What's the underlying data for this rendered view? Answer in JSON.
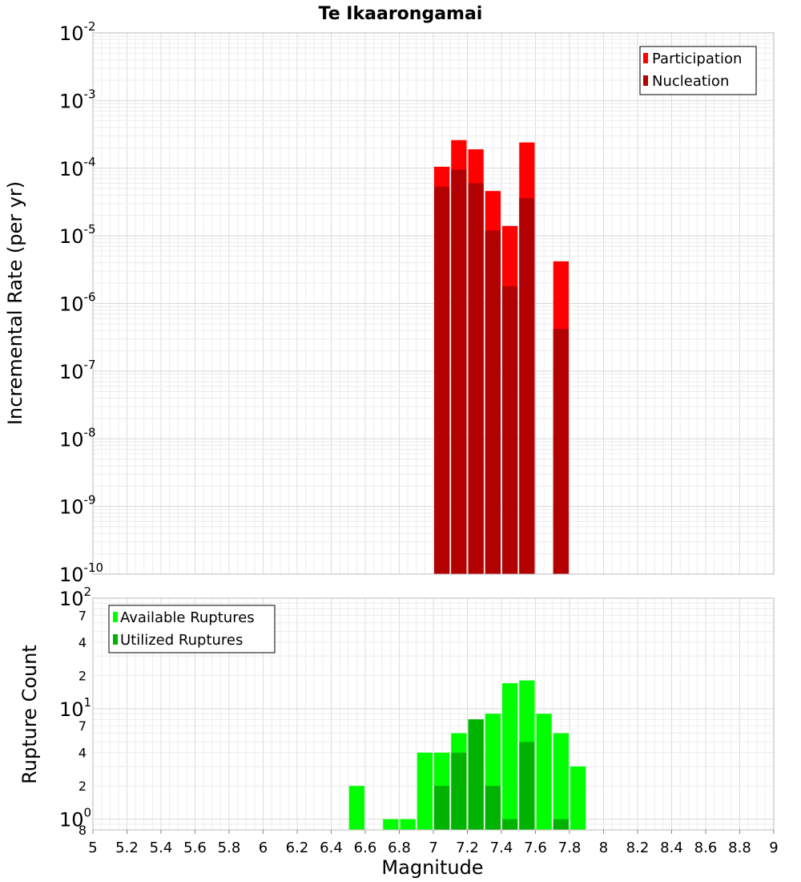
{
  "chart_data": {
    "title": "Te Ikaarongamai",
    "xlabel": "Magnitude",
    "xlim": [
      5,
      9
    ],
    "x_ticks": [
      "5",
      "5.2",
      "5.4",
      "5.6",
      "5.8",
      "6",
      "6.2",
      "6.4",
      "6.6",
      "6.8",
      "7",
      "7.2",
      "7.4",
      "7.6",
      "7.8",
      "8",
      "8.2",
      "8.4",
      "8.6",
      "8.8",
      "9"
    ],
    "grid": true,
    "panels": [
      {
        "type": "bar",
        "ylabel": "Incremental Rate (per yr)",
        "yscale": "log",
        "ylim": [
          1e-10,
          0.01
        ],
        "y_ticks": [
          {
            "base": "10",
            "exp": "-10"
          },
          {
            "base": "10",
            "exp": "-9"
          },
          {
            "base": "10",
            "exp": "-8"
          },
          {
            "base": "10",
            "exp": "-7"
          },
          {
            "base": "10",
            "exp": "-6"
          },
          {
            "base": "10",
            "exp": "-5"
          },
          {
            "base": "10",
            "exp": "-4"
          },
          {
            "base": "10",
            "exp": "-3"
          },
          {
            "base": "10",
            "exp": "-2"
          }
        ],
        "legend_position": "top-right",
        "x": [
          7.05,
          7.15,
          7.25,
          7.35,
          7.45,
          7.55,
          7.75
        ],
        "series": [
          {
            "name": "Participation",
            "color": "#ff0000",
            "values": [
              0.000105,
              0.00026,
              0.00019,
              4.6e-05,
              1.4e-05,
              0.00024,
              4.2e-06
            ]
          },
          {
            "name": "Nucleation",
            "color": "#b30000",
            "values": [
              5.3e-05,
              9.5e-05,
              6e-05,
              1.2e-05,
              1.8e-06,
              3.6e-05,
              4.2e-07
            ]
          }
        ]
      },
      {
        "type": "bar",
        "ylabel": "Rupture Count",
        "yscale": "log",
        "ylim": [
          0.8,
          100
        ],
        "y_major_ticks": [
          {
            "base": "10",
            "exp": "0",
            "value": 1
          },
          {
            "base": "10",
            "exp": "1",
            "value": 10
          },
          {
            "base": "10",
            "exp": "2",
            "value": 100
          }
        ],
        "y_minor_ticks": [
          {
            "label": "8",
            "value": 0.8
          },
          {
            "label": "2",
            "value": 2
          },
          {
            "label": "4",
            "value": 4
          },
          {
            "label": "7",
            "value": 7
          },
          {
            "label": "2",
            "value": 20
          },
          {
            "label": "4",
            "value": 40
          },
          {
            "label": "7",
            "value": 70
          }
        ],
        "legend_position": "top-left",
        "x": [
          6.55,
          6.75,
          6.85,
          6.95,
          7.05,
          7.15,
          7.25,
          7.35,
          7.45,
          7.55,
          7.65,
          7.75,
          7.85
        ],
        "series": [
          {
            "name": "Available Ruptures",
            "color": "#00ff00",
            "values": [
              2,
              1,
              1,
              4,
              4,
              6,
              8,
              9,
              17,
              18,
              9,
              6,
              3
            ]
          },
          {
            "name": "Utilized Ruptures",
            "color": "#00b300",
            "values": [
              0,
              0,
              0,
              0,
              2,
              4,
              8,
              2,
              1,
              5,
              0,
              1,
              0
            ]
          }
        ]
      }
    ]
  }
}
